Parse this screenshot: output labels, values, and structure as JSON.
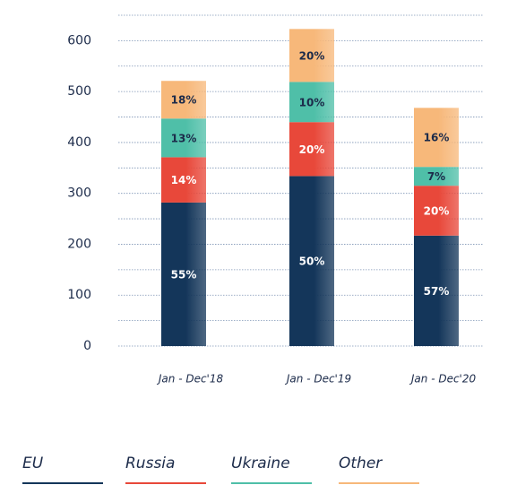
{
  "chart_data": {
    "type": "stacked_bar",
    "categories": [
      "Jan - Dec'18",
      "Jan - Dec'19",
      "Jan - Dec'20"
    ],
    "series": [
      {
        "name": "EU",
        "color": "#14365a",
        "values": [
          282,
          334,
          217
        ],
        "percent_labels": [
          "55%",
          "50%",
          "57%"
        ]
      },
      {
        "name": "Russia",
        "color": "#e8483a",
        "values": [
          89,
          106,
          98
        ],
        "percent_labels": [
          "14%",
          "20%",
          "20%"
        ]
      },
      {
        "name": "Ukraine",
        "color": "#4fbfa8",
        "values": [
          76,
          79,
          37
        ],
        "percent_labels": [
          "13%",
          "10%",
          "7%"
        ]
      },
      {
        "name": "Other",
        "color": "#f7b87a",
        "values": [
          74,
          104,
          116
        ],
        "percent_labels": [
          "18%",
          "20%",
          "16%"
        ]
      }
    ],
    "ylim": [
      0,
      650
    ],
    "yticks": [
      0,
      100,
      200,
      300,
      400,
      500,
      600
    ],
    "minor_yticks": [
      50,
      150,
      250,
      350,
      450,
      550,
      650
    ],
    "grid": true,
    "legend": "bottom"
  }
}
